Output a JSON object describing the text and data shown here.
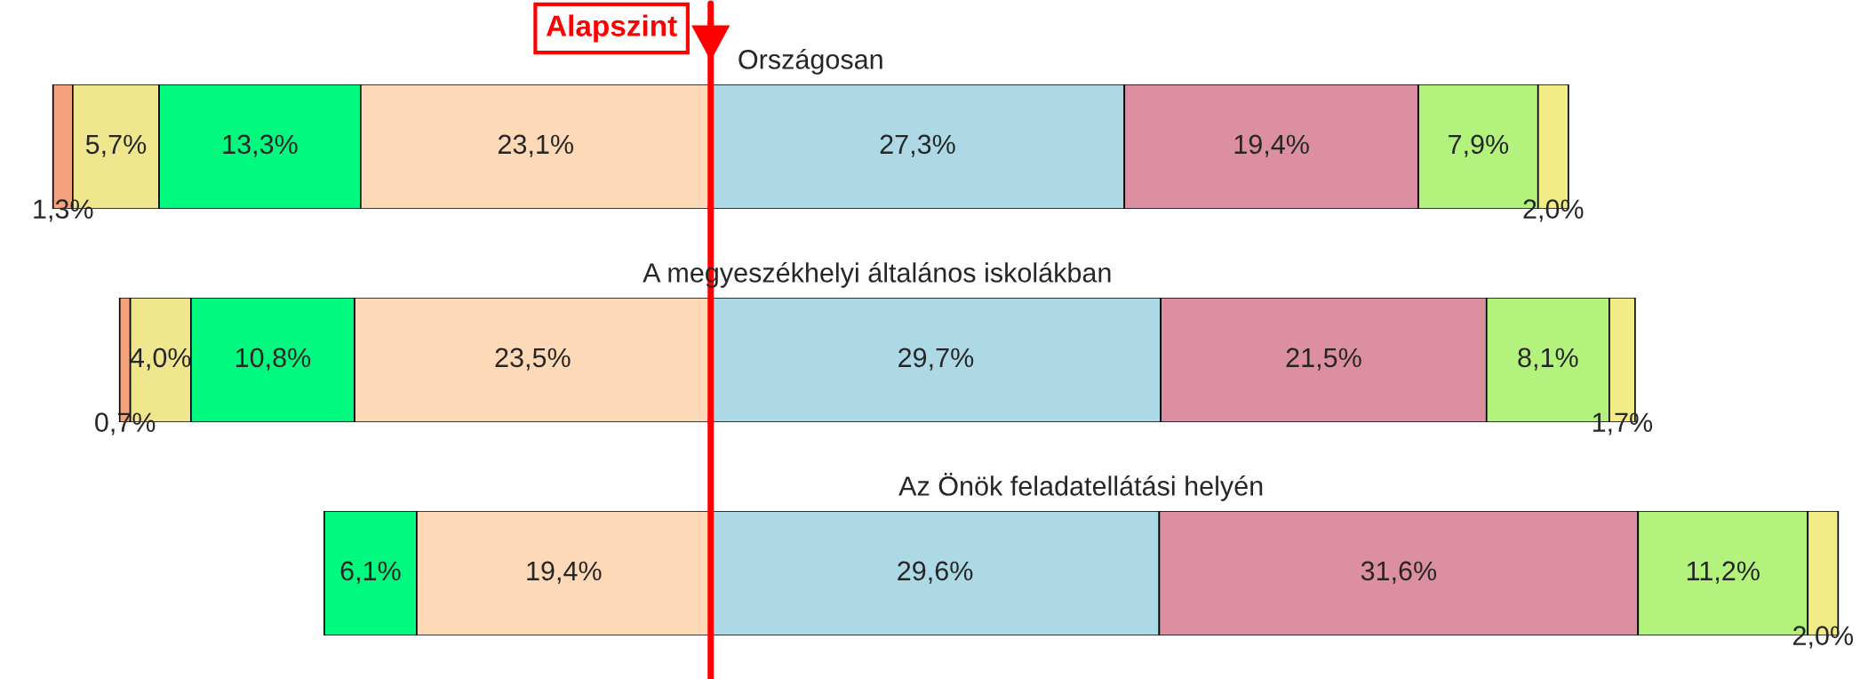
{
  "chart_data": [
    {
      "type": "bar",
      "orientation": "horizontal",
      "stacked": true,
      "title": "Országosan",
      "categories": [
        null
      ],
      "series": [
        {
          "color": "#f7a27e",
          "values": [
            1.3
          ],
          "value_labels": [
            "1,3%"
          ]
        },
        {
          "color": "#efe68e",
          "values": [
            5.7
          ],
          "value_labels": [
            "5,7%"
          ]
        },
        {
          "color": "#00fa80",
          "values": [
            13.3
          ],
          "value_labels": [
            "13,3%"
          ]
        },
        {
          "color": "#fdd9b8",
          "values": [
            23.1
          ],
          "value_labels": [
            "23,1%"
          ]
        },
        {
          "color": "#add8e6",
          "values": [
            27.3
          ],
          "value_labels": [
            "27,3%"
          ]
        },
        {
          "color": "#dc8fa0",
          "values": [
            19.4
          ],
          "value_labels": [
            "19,4%"
          ]
        },
        {
          "color": "#b4f27e",
          "values": [
            7.9
          ],
          "value_labels": [
            "7,9%"
          ]
        },
        {
          "color": "#f2ec84",
          "values": [
            2.0
          ],
          "value_labels": [
            "2,0%"
          ]
        }
      ],
      "ref_lines": [
        {
          "axis": "x",
          "value": 43.4,
          "label": "Alapszint",
          "color": "#ff0000"
        }
      ],
      "legend": false
    },
    {
      "type": "bar",
      "orientation": "horizontal",
      "stacked": true,
      "title": "A megyeszékhelyi általános iskolákban",
      "categories": [
        null
      ],
      "series": [
        {
          "color": "#f7a27e",
          "values": [
            0.7
          ],
          "value_labels": [
            "0,7%"
          ]
        },
        {
          "color": "#efe68e",
          "values": [
            4.0
          ],
          "value_labels": [
            "4,0%"
          ]
        },
        {
          "color": "#00fa80",
          "values": [
            10.8
          ],
          "value_labels": [
            "10,8%"
          ]
        },
        {
          "color": "#fdd9b8",
          "values": [
            23.5
          ],
          "value_labels": [
            "23,5%"
          ]
        },
        {
          "color": "#add8e6",
          "values": [
            29.7
          ],
          "value_labels": [
            "29,7%"
          ]
        },
        {
          "color": "#dc8fa0",
          "values": [
            21.5
          ],
          "value_labels": [
            "21,5%"
          ]
        },
        {
          "color": "#b4f27e",
          "values": [
            8.1
          ],
          "value_labels": [
            "8,1%"
          ]
        },
        {
          "color": "#f2ec84",
          "values": [
            1.7
          ],
          "value_labels": [
            "1,7%"
          ]
        }
      ],
      "ref_lines": [
        {
          "axis": "x",
          "value": 39.0,
          "color": "#ff0000"
        }
      ],
      "legend": false
    },
    {
      "type": "bar",
      "orientation": "horizontal",
      "stacked": true,
      "title": "Az Önök feladatellátási helyén",
      "categories": [
        null
      ],
      "series": [
        {
          "color": "#00fa80",
          "values": [
            6.1
          ],
          "value_labels": [
            "6,1%"
          ]
        },
        {
          "color": "#fdd9b8",
          "values": [
            19.4
          ],
          "value_labels": [
            "19,4%"
          ]
        },
        {
          "color": "#add8e6",
          "values": [
            29.6
          ],
          "value_labels": [
            "29,6%"
          ]
        },
        {
          "color": "#dc8fa0",
          "values": [
            31.6
          ],
          "value_labels": [
            "31,6%"
          ]
        },
        {
          "color": "#b4f27e",
          "values": [
            11.2
          ],
          "value_labels": [
            "11,2%"
          ]
        },
        {
          "color": "#f2ec84",
          "values": [
            2.0
          ],
          "value_labels": [
            "2,0%"
          ]
        }
      ],
      "ref_lines": [
        {
          "axis": "x",
          "value": 25.5,
          "color": "#ff0000"
        }
      ],
      "legend": false
    }
  ]
}
